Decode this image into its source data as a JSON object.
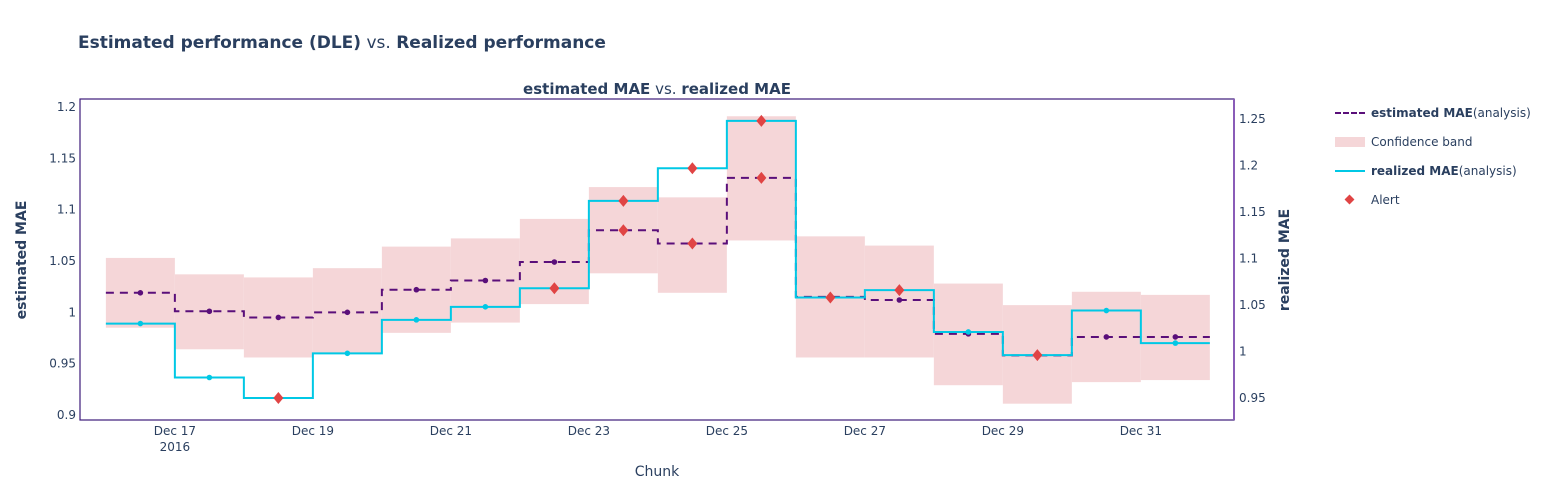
{
  "title": {
    "bold1": "Estimated performance (DLE)",
    "mid": " vs. ",
    "bold2": "Realized performance"
  },
  "chart_data": {
    "type": "line",
    "subtitle": {
      "bold1": "estimated MAE",
      "mid": " vs. ",
      "bold2": "realized MAE"
    },
    "xlabel": "Chunk",
    "ylabel_left": "estimated MAE",
    "ylabel_right": "realized MAE",
    "x_range": [
      "2016-12-15T15:00",
      "2017-01-01T08:24"
    ],
    "x_ticks": [
      {
        "date": "2016-12-17",
        "label": "Dec 17",
        "sub": "2016"
      },
      {
        "date": "2016-12-19",
        "label": "Dec 19"
      },
      {
        "date": "2016-12-21",
        "label": "Dec 21"
      },
      {
        "date": "2016-12-23",
        "label": "Dec 23"
      },
      {
        "date": "2016-12-25",
        "label": "Dec 25"
      },
      {
        "date": "2016-12-27",
        "label": "Dec 27"
      },
      {
        "date": "2016-12-29",
        "label": "Dec 29"
      },
      {
        "date": "2016-12-31",
        "label": "Dec 31"
      }
    ],
    "y_left_range": [
      0.8951,
      1.2078
    ],
    "y_left_ticks": [
      "0.9",
      "0.95",
      "1",
      "1.05",
      "1.1",
      "1.15",
      "1.2"
    ],
    "y_right_range": [
      0.9263,
      1.2715
    ],
    "y_right_ticks": [
      "0.95",
      "1",
      "1.05",
      "1.1",
      "1.15",
      "1.2",
      "1.25"
    ],
    "chunk_starts": [
      "2016-12-16",
      "2016-12-17",
      "2016-12-18",
      "2016-12-19",
      "2016-12-20",
      "2016-12-21",
      "2016-12-22",
      "2016-12-23",
      "2016-12-24",
      "2016-12-25",
      "2016-12-26",
      "2016-12-27",
      "2016-12-28",
      "2016-12-29",
      "2016-12-30",
      "2016-12-31",
      "2017-01-01"
    ],
    "series": [
      {
        "name": "estimated MAE (analysis)",
        "axis": "left",
        "color": "#5a0f7a",
        "values": [
          1.019,
          1.001,
          0.995,
          1.0,
          1.022,
          1.031,
          1.049,
          1.08,
          1.067,
          1.131,
          1.015,
          1.012,
          0.979,
          0.958,
          0.976,
          0.976
        ],
        "alerts": [
          7,
          8,
          9
        ]
      },
      {
        "name": "Confidence band",
        "axis": "left",
        "color": "#f5d6d8",
        "upper": [
          1.053,
          1.037,
          1.034,
          1.043,
          1.064,
          1.072,
          1.091,
          1.122,
          1.112,
          1.191,
          1.074,
          1.065,
          1.028,
          1.007,
          1.02,
          1.017
        ],
        "lower": [
          0.985,
          0.964,
          0.956,
          0.96,
          0.98,
          0.99,
          1.008,
          1.038,
          1.019,
          1.07,
          0.956,
          0.956,
          0.929,
          0.911,
          0.932,
          0.934
        ]
      },
      {
        "name": "realized MAE (analysis)",
        "axis": "right",
        "color": "#00c8e5",
        "values": [
          1.03,
          0.972,
          0.95,
          0.998,
          1.034,
          1.048,
          1.068,
          1.162,
          1.197,
          1.248,
          1.058,
          1.066,
          1.021,
          0.996,
          1.044,
          1.009
        ],
        "alerts": [
          2,
          6,
          7,
          8,
          9,
          10,
          11,
          13
        ]
      }
    ],
    "alert_color": "#e04444",
    "legend": [
      {
        "bold": "estimated MAE",
        "rest": " (analysis)"
      },
      {
        "bold": "",
        "rest": "Confidence band"
      },
      {
        "bold": "realized MAE",
        "rest": " (analysis)"
      },
      {
        "bold": "",
        "rest": "Alert"
      }
    ]
  }
}
